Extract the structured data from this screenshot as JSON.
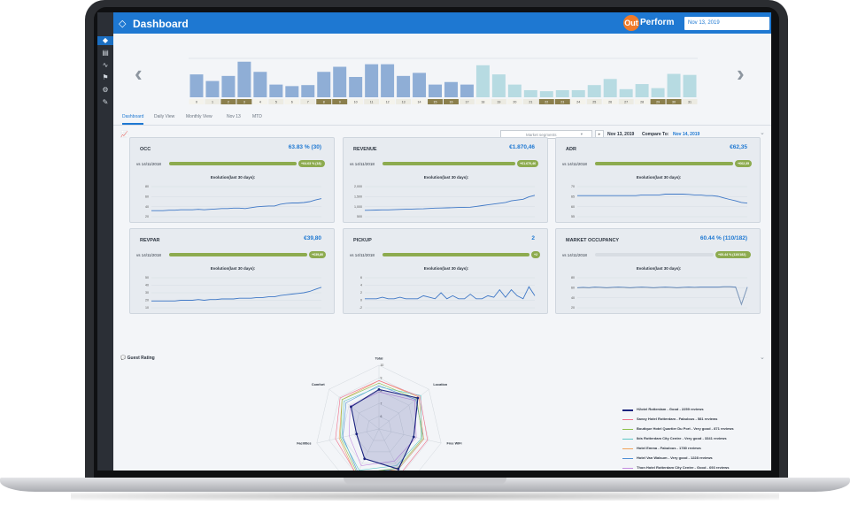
{
  "header": {
    "title": "Dashboard",
    "logo_out": "Out",
    "logo_perform": "Perform",
    "date": "Nov 13, 2019"
  },
  "calendar": {
    "days": [
      "0",
      "1",
      "2",
      "3",
      "4",
      "5",
      "6",
      "7",
      "8",
      "9",
      "10",
      "11",
      "12",
      "13",
      "14",
      "15",
      "16",
      "17",
      "18",
      "19",
      "20",
      "21",
      "22",
      "23",
      "24",
      "25",
      "26",
      "27",
      "28",
      "29",
      "30",
      "31"
    ],
    "values": [
      0.45,
      0.32,
      0.42,
      0.7,
      0.5,
      0.25,
      0.22,
      0.24,
      0.5,
      0.6,
      0.4,
      0.65,
      0.65,
      0.42,
      0.48,
      0.25,
      0.3,
      0.25,
      0.63,
      0.45,
      0.25,
      0.14,
      0.12,
      0.14,
      0.14,
      0.24,
      0.36,
      0.16,
      0.26,
      0.18,
      0.46,
      0.44
    ],
    "highlighted_days": [
      "2",
      "3",
      "8",
      "9",
      "15",
      "16",
      "22",
      "23",
      "29",
      "30"
    ],
    "bar_color_dark": "#8faed6",
    "bar_color_light": "#b7dbe2",
    "label_dark_bg": "#8b7f4c",
    "label_light_bg": "#d9d4b2"
  },
  "tabs": [
    "Dashboard",
    "Daily View",
    "Monthly View",
    "Nov 13",
    "MTD"
  ],
  "filter": {
    "segment_placeholder": "Market segments",
    "date": "Nov 13, 2019",
    "compare_label": "Compare To:",
    "compare_date": "Nov 14, 2019"
  },
  "cards": [
    {
      "title": "OCC",
      "value": "63.83 % (30)",
      "vs": "vs 14/11/2018",
      "delta": "+64.63 % (18)",
      "evolution": "Evolution(last 30 days):",
      "yticks": [
        "80",
        "60",
        "40",
        "20"
      ],
      "ymin": 15,
      "ymax": 85,
      "series": [
        29,
        29,
        29,
        30,
        30,
        31,
        31,
        31,
        32,
        31,
        32,
        33,
        34,
        34,
        35,
        35,
        34,
        36,
        38,
        39,
        40,
        40,
        44,
        46,
        47,
        47,
        48,
        50,
        54,
        57
      ],
      "muted": false
    },
    {
      "title": "REVENUE",
      "value": "€1.870,46",
      "vs": "vs 14/11/2018",
      "delta": "+€1.670,46",
      "evolution": "Evolution(last 30 days):",
      "yticks": [
        "2,000",
        "1,500",
        "1,000",
        "500"
      ],
      "ymin": 300,
      "ymax": 2200,
      "series": [
        700,
        710,
        720,
        730,
        730,
        740,
        760,
        770,
        780,
        790,
        800,
        820,
        840,
        850,
        860,
        870,
        880,
        890,
        900,
        950,
        1000,
        1050,
        1100,
        1150,
        1200,
        1300,
        1350,
        1400,
        1550,
        1650
      ],
      "muted": false
    },
    {
      "title": "ADR",
      "value": "€62,35",
      "vs": "vs 14/11/2018",
      "delta": "+€62,35",
      "evolution": "Evolution(last 30 days):",
      "yticks": [
        "70",
        "65",
        "60",
        "55"
      ],
      "ymin": 52,
      "ymax": 72,
      "series": [
        66,
        66,
        66,
        66,
        66,
        66,
        66,
        66,
        66,
        66,
        66,
        66.5,
        66.5,
        66.5,
        66.5,
        67,
        67,
        67,
        67,
        66.8,
        66.5,
        66.5,
        66,
        66,
        65.5,
        64.5,
        63.5,
        62.5,
        61.5,
        61
      ],
      "muted": false
    },
    {
      "title": "REVPAR",
      "value": "€39,80",
      "vs": "vs 14/11/2018",
      "delta": "+€39,80",
      "evolution": "Evolution(last 30 days):",
      "yticks": [
        "50",
        "40",
        "30",
        "20",
        "10"
      ],
      "ymin": 8,
      "ymax": 52,
      "series": [
        18,
        18,
        18,
        18,
        18,
        19,
        19,
        19,
        20,
        19,
        20,
        20,
        21,
        21,
        21,
        22,
        22,
        22,
        23,
        23,
        24,
        24,
        26,
        27,
        28,
        29,
        30,
        32,
        35,
        38
      ],
      "muted": false
    },
    {
      "title": "PICKUP",
      "value": "2",
      "vs": "vs 14/11/2018",
      "delta": "+2",
      "evolution": "Evolution(last 30 days):",
      "yticks": [
        "6",
        "4",
        "2",
        "0",
        "-2"
      ],
      "ymin": -3,
      "ymax": 7,
      "series": [
        0,
        0,
        0,
        0.5,
        0,
        0,
        0.5,
        0,
        0,
        0,
        1,
        0.5,
        0,
        2,
        0,
        1,
        0,
        0,
        1.5,
        0,
        0,
        1,
        0.5,
        3,
        0.5,
        3,
        1,
        0,
        4,
        1
      ],
      "muted": false
    },
    {
      "title": "MARKET OCCUPANCY",
      "value": "60.44 % (110/182)",
      "vs": "vs 14/11/2018",
      "delta": "+60.44 % (110/182)",
      "evolution": "Evolution(last 30 days):",
      "yticks": [
        "80",
        "60",
        "40",
        "20"
      ],
      "ymin": 0,
      "ymax": 90,
      "series": [
        60,
        61,
        60,
        62,
        61,
        60,
        61,
        62,
        61,
        60,
        61,
        62,
        61,
        60,
        61,
        62,
        61,
        60,
        61,
        62,
        61,
        62,
        62,
        62,
        62,
        63,
        63,
        62,
        10,
        62
      ],
      "muted": true
    }
  ],
  "guest_rating": {
    "title": "Guest Rating",
    "axes": [
      "Total",
      "Location",
      "Free WiFi",
      "Value for money",
      "Staff",
      "Facilities",
      "Comfort"
    ],
    "ticks": [
      "10",
      "9",
      "8",
      "7",
      "6"
    ],
    "series": [
      {
        "name": "H2otel Rotterdam - Good - 2259 reviews",
        "color": "#1a237e",
        "values": [
          8.1,
          8.9,
          7.8,
          8.5,
          7.6,
          6.8,
          7.8
        ]
      },
      {
        "name": "Savoy Hotel Rotterdam - Fabulous - 581 reviews",
        "color": "#ef6f8b",
        "values": [
          8.8,
          9.1,
          8.9,
          8.9,
          9.0,
          8.5,
          8.9
        ]
      },
      {
        "name": "Boutique Hotel Quartier Du Port - Very good - 871 reviews",
        "color": "#8dc04a",
        "values": [
          8.6,
          8.8,
          8.5,
          8.4,
          8.9,
          8.1,
          8.7
        ]
      },
      {
        "name": "Ibis Rotterdam City Centre - Very good - 3341 reviews",
        "color": "#5dc7c5",
        "values": [
          8.3,
          9.2,
          8.4,
          8.2,
          8.6,
          8.0,
          8.5
        ]
      },
      {
        "name": "Hotel Emma - Fabulous - 1780 reviews",
        "color": "#f2a25a",
        "values": [
          8.8,
          9.0,
          8.6,
          8.5,
          9.1,
          8.2,
          8.7
        ]
      },
      {
        "name": "Hotel Van Walsum - Very good - 1228 reviews",
        "color": "#4f8fd6",
        "values": [
          8.4,
          8.7,
          8.6,
          8.5,
          8.8,
          7.9,
          8.3
        ]
      },
      {
        "name": "Thon Hotel Rotterdam City Centre - Good - 693 reviews",
        "color": "#c38de0",
        "values": [
          7.9,
          8.6,
          8.0,
          7.8,
          8.2,
          7.4,
          7.9
        ]
      }
    ]
  },
  "icons": {
    "side": [
      "gem-icon",
      "dashboard-icon",
      "trend-icon",
      "flag-icon",
      "gear-icon",
      "wrench-icon"
    ]
  }
}
